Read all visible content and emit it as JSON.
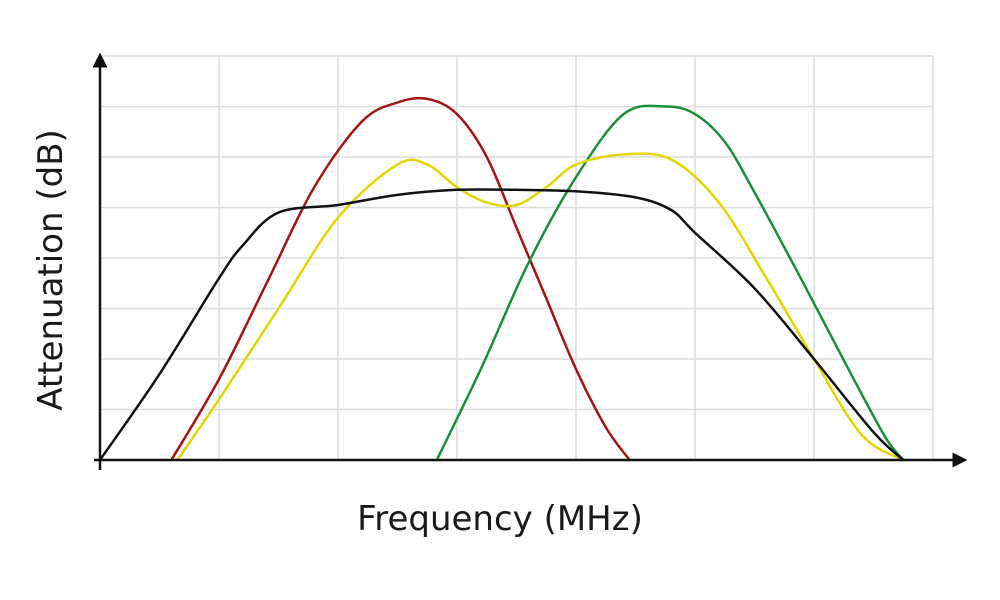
{
  "chart_data": {
    "type": "line",
    "xlabel": "Frequency (MHz)",
    "ylabel": "Attenuation (dB)",
    "xlim": [
      0,
      7
    ],
    "ylim": [
      0,
      8
    ],
    "grid": true,
    "tick_labels_shown": false,
    "series": [
      {
        "color": "#a31515",
        "x": [
          0.6,
          1.0,
          1.4,
          1.8,
          2.2,
          2.5,
          2.75,
          3.0,
          3.25,
          3.5,
          3.75,
          4.0,
          4.25,
          4.45
        ],
        "y": [
          0,
          1.6,
          3.5,
          5.4,
          6.7,
          7.08,
          7.15,
          6.85,
          6.0,
          4.6,
          3.2,
          1.8,
          0.65,
          0
        ]
      },
      {
        "color": "#1a8f3c",
        "x": [
          2.83,
          3.2,
          3.6,
          4.0,
          4.4,
          4.75,
          5.0,
          5.25,
          5.5,
          5.9,
          6.3,
          6.6,
          6.75
        ],
        "y": [
          0,
          1.8,
          3.9,
          5.6,
          6.85,
          7.0,
          6.85,
          6.3,
          5.3,
          3.55,
          1.75,
          0.45,
          0
        ]
      },
      {
        "color": "#e3d600",
        "x": [
          0.65,
          1.0,
          1.5,
          2.0,
          2.5,
          2.75,
          3.0,
          3.25,
          3.5,
          3.75,
          4.0,
          4.4,
          4.8,
          5.2,
          5.6,
          6.0,
          6.4,
          6.75
        ],
        "y": [
          0,
          1.2,
          3.0,
          4.8,
          5.85,
          5.85,
          5.4,
          5.1,
          5.05,
          5.4,
          5.85,
          6.05,
          5.95,
          5.1,
          3.6,
          2.0,
          0.5,
          0
        ]
      },
      {
        "color": "#111111",
        "x": [
          0.0,
          0.5,
          1.0,
          1.2,
          1.5,
          2.0,
          2.5,
          3.0,
          3.5,
          4.0,
          4.5,
          4.8,
          5.0,
          5.5,
          6.0,
          6.5,
          6.75
        ],
        "y": [
          0,
          1.7,
          3.6,
          4.25,
          4.9,
          5.05,
          5.25,
          5.35,
          5.35,
          5.32,
          5.2,
          4.95,
          4.5,
          3.4,
          2.0,
          0.55,
          0
        ]
      }
    ]
  }
}
